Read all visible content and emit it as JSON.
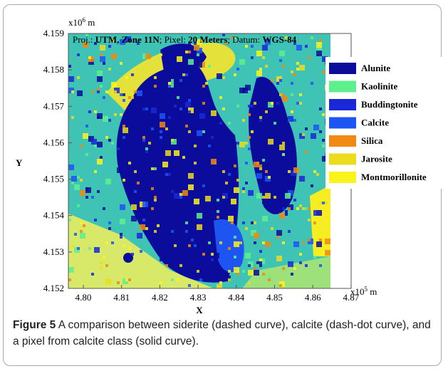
{
  "figure": {
    "projection": {
      "parts": [
        "Proj.: ",
        "UTM, Zone 11N",
        "; Pixel: ",
        "20 Meters",
        "; Datum: ",
        "WGS-84"
      ]
    },
    "y_axis": {
      "label": "Y",
      "multiplier": {
        "base": "x10",
        "exponent": "6",
        "unit": " m"
      },
      "ticks": [
        "4.159",
        "4.158",
        "4.157",
        "4.156",
        "4.155",
        "4.154",
        "4.153",
        "4.152"
      ]
    },
    "x_axis": {
      "label": "X",
      "multiplier": {
        "base": "x10",
        "exponent": "5",
        "unit": " m"
      },
      "ticks": [
        "4.80",
        "4.81",
        "4.82",
        "4.83",
        "4.84",
        "4.85",
        "4.86",
        "4.87"
      ]
    },
    "legend": [
      {
        "name": "Alunite",
        "color": "#0b0b9c"
      },
      {
        "name": "Kaolinite",
        "color": "#5ef08e"
      },
      {
        "name": "Buddingtonite",
        "color": "#1a28d6"
      },
      {
        "name": "Calcite",
        "color": "#1d55f2"
      },
      {
        "name": "Silica",
        "color": "#f08a14"
      },
      {
        "name": "Jarosite",
        "color": "#ecdc1e"
      },
      {
        "name": "Montmorillonite",
        "color": "#fbf41c"
      }
    ],
    "caption": {
      "label": "Figure 5",
      "text": " A comparison between siderite (dashed curve), calcite (dash-dot curve), and a pixel from calcite class (solid curve)."
    }
  }
}
